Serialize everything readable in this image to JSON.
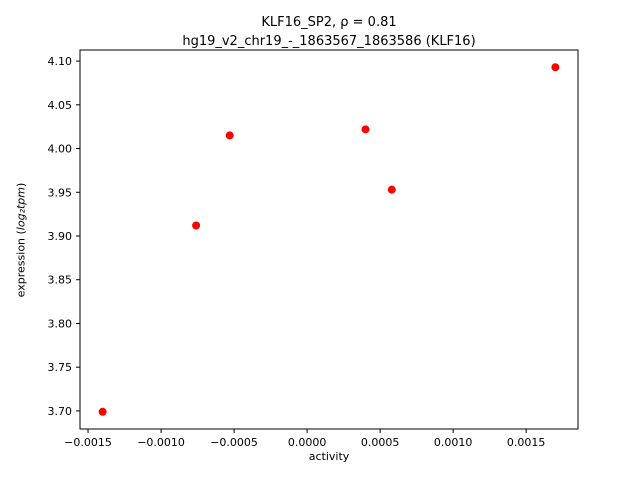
{
  "figure": {
    "title_line1": "KLF16_SP2, ρ = 0.81",
    "title_line2": "hg19_v2_chr19_-_1863567_1863586 (KLF16)",
    "xlabel": "activity",
    "ylabel_prefix": "expression (",
    "ylabel_math": "log₂tpm",
    "ylabel_suffix": ")"
  },
  "chart_data": {
    "type": "scatter",
    "title": "KLF16_SP2, ρ = 0.81\nhg19_v2_chr19_-_1863567_1863586 (KLF16)",
    "xlabel": "activity",
    "ylabel": "expression (log2 tpm)",
    "legend": null,
    "grid": false,
    "marker_color": "#ff0000",
    "marker_radius_px": 4,
    "points": [
      {
        "x": -0.0014,
        "y": 3.699
      },
      {
        "x": -0.00076,
        "y": 3.912
      },
      {
        "x": -0.00053,
        "y": 4.015
      },
      {
        "x": 0.0004,
        "y": 4.022
      },
      {
        "x": 0.00058,
        "y": 3.953
      },
      {
        "x": 0.0017,
        "y": 4.093
      }
    ],
    "xlim": [
      -0.001555,
      0.001855
    ],
    "ylim": [
      3.6793,
      4.1127
    ],
    "x_ticks": {
      "values": [
        -0.0015,
        -0.001,
        -0.0005,
        0.0,
        0.0005,
        0.001,
        0.0015
      ],
      "labels": [
        "−0.0015",
        "−0.0010",
        "−0.0005",
        "0.0000",
        "0.0005",
        "0.0010",
        "0.0015"
      ]
    },
    "y_ticks": {
      "values": [
        3.7,
        3.75,
        3.8,
        3.85,
        3.9,
        3.95,
        4.0,
        4.05,
        4.1
      ],
      "labels": [
        "3.70",
        "3.75",
        "3.80",
        "3.85",
        "3.90",
        "3.95",
        "4.00",
        "4.05",
        "4.10"
      ]
    }
  }
}
